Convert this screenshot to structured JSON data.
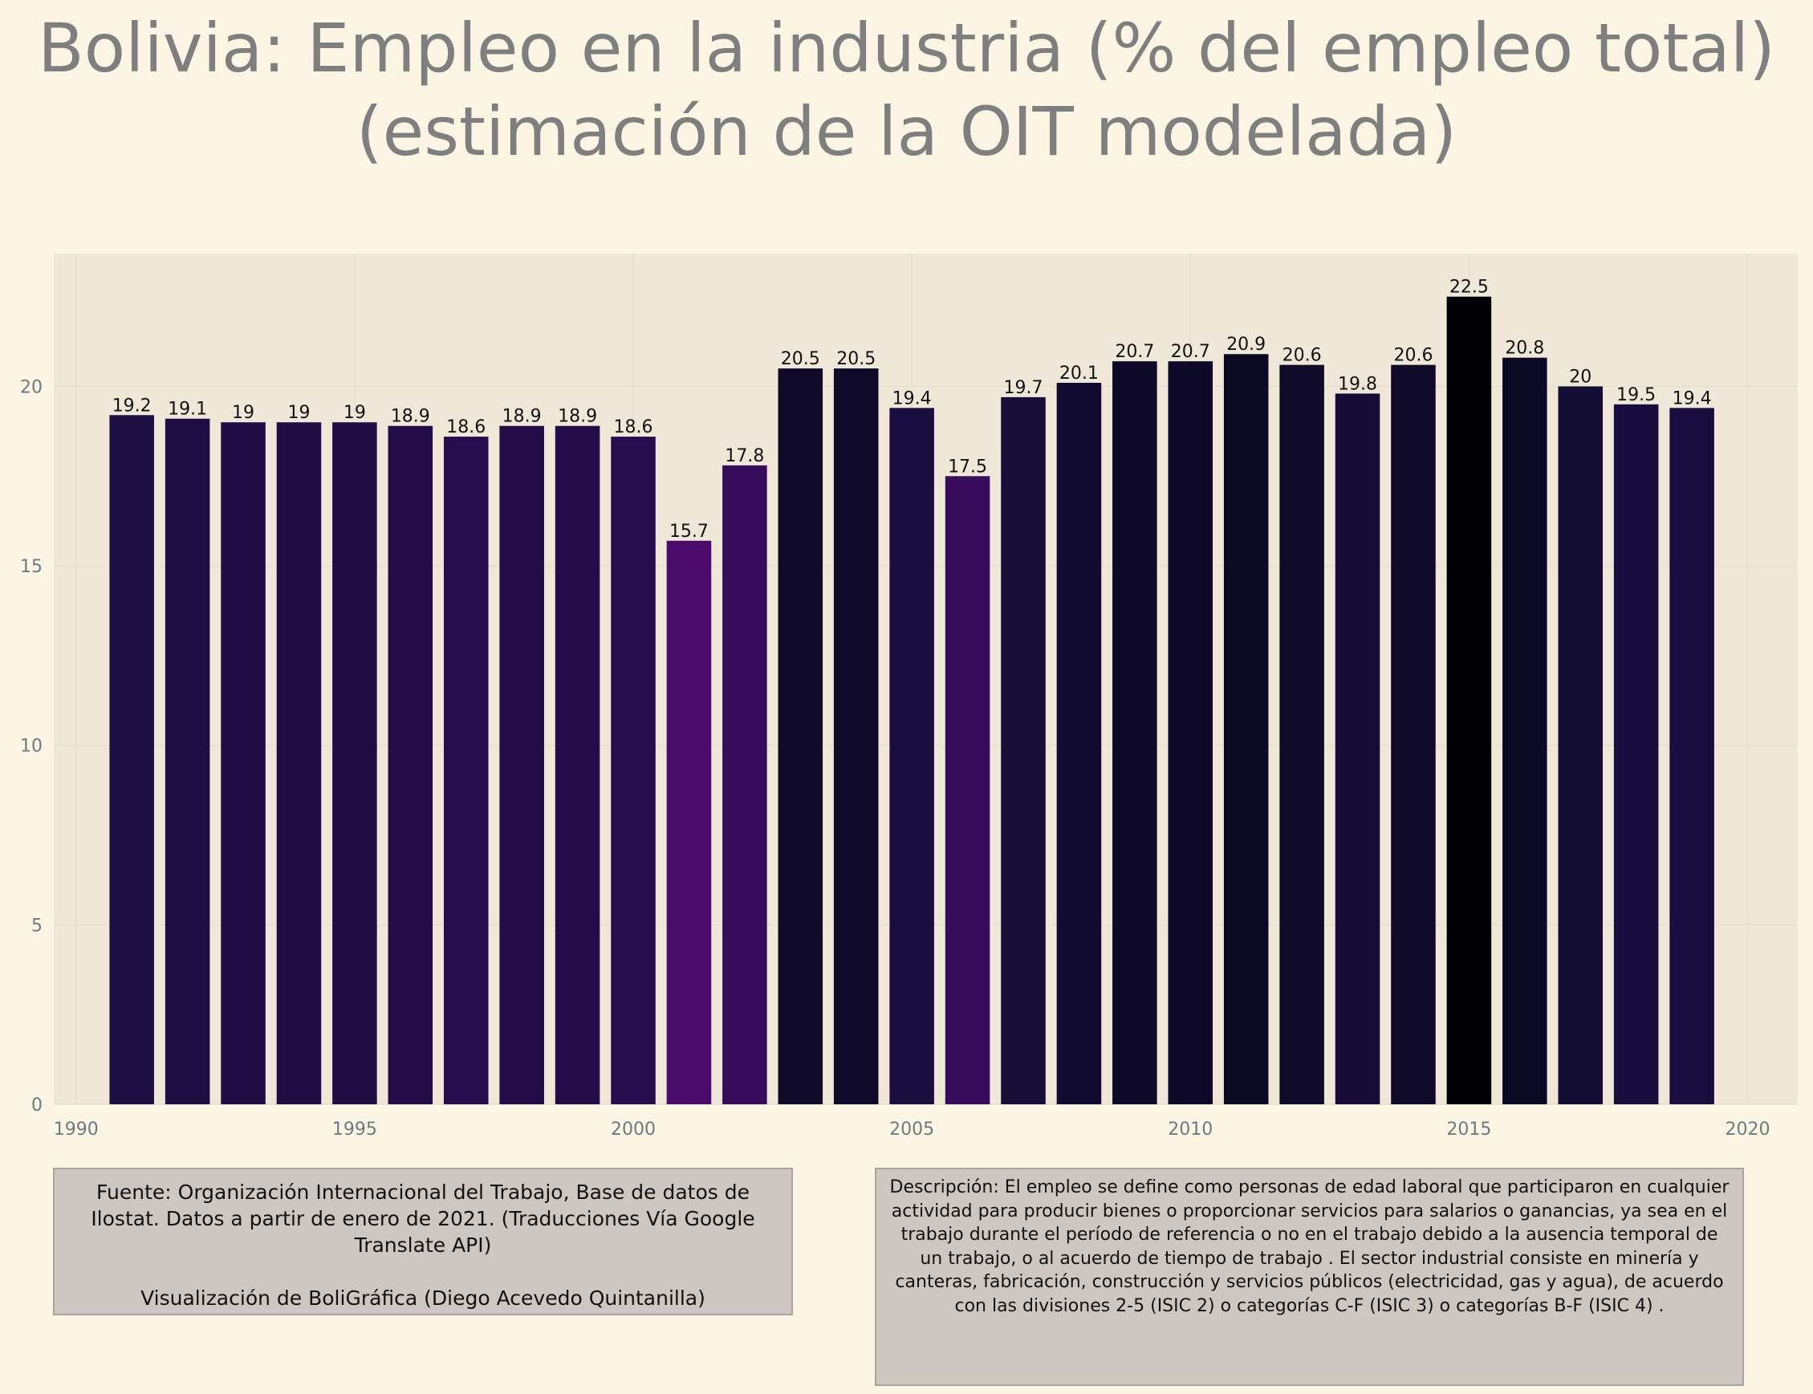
{
  "title": "Bolivia:  Empleo en la industria (% del empleo total) (estimación de la OIT modelada)",
  "source_text": "Fuente: Organización Internacional del Trabajo, Base de datos de Ilostat. Datos a partir de enero de 2021. (Traducciones Vía Google Translate API)",
  "credit_text": "Visualización de BoliGráfica (Diego Acevedo Quintanilla)",
  "description_text": "Descripción: El empleo se define como personas de edad laboral que participaron en cualquier actividad para producir bienes o proporcionar servicios para salarios o ganancias, ya sea en el trabajo durante el período de referencia o no en el trabajo debido a la ausencia temporal de un trabajo, o al acuerdo de tiempo de trabajo . El sector industrial consiste en minería y canteras, fabricación, construcción y servicios públicos (electricidad, gas y agua), de acuerdo con las divisiones 2-5 (ISIC 2) o categorías C-F (ISIC 3) o categorías B-F (ISIC 4) .",
  "colors": {
    "page_background": "#fcf5e3",
    "plot_background": "#efe8d8",
    "title": "#7f7f7f",
    "tick_label": "#6b7b84",
    "bar_scale": "magma (dark purple to black by value)"
  },
  "chart_data": {
    "type": "bar",
    "x": [
      1991,
      1992,
      1993,
      1994,
      1995,
      1996,
      1997,
      1998,
      1999,
      2000,
      2001,
      2002,
      2003,
      2004,
      2005,
      2006,
      2007,
      2008,
      2009,
      2010,
      2011,
      2012,
      2013,
      2014,
      2015,
      2016,
      2017,
      2018,
      2019
    ],
    "values": [
      19.2,
      19.1,
      19,
      19,
      19,
      18.9,
      18.6,
      18.9,
      18.9,
      18.6,
      15.7,
      17.8,
      20.5,
      20.5,
      19.4,
      17.5,
      19.7,
      20.1,
      20.7,
      20.7,
      20.9,
      20.6,
      19.8,
      20.6,
      22.5,
      20.8,
      20,
      19.5,
      19.4
    ],
    "xticks": [
      1990,
      1995,
      2000,
      2005,
      2010,
      2015,
      2020
    ],
    "yticks": [
      0,
      5,
      10,
      15,
      20
    ],
    "xlim": [
      1989.6,
      2020.9
    ],
    "ylim": [
      0,
      23.7
    ],
    "xlabel": "",
    "ylabel": "",
    "grid": true,
    "legend": "none"
  }
}
